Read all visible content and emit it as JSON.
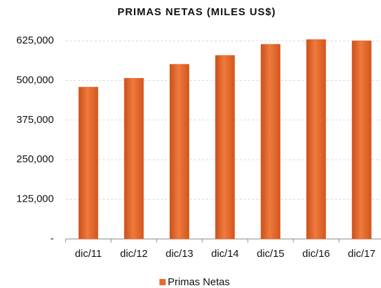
{
  "chart_data": {
    "type": "bar",
    "title": "PRIMAS NETAS (MILES US$)",
    "categories": [
      "dic/11",
      "dic/12",
      "dic/13",
      "dic/14",
      "dic/15",
      "dic/16",
      "dic/17"
    ],
    "series": [
      {
        "name": "Primas Netas",
        "color": "#e8692e",
        "values": [
          479000,
          507000,
          551000,
          579000,
          614000,
          629000,
          625000
        ]
      }
    ],
    "ylim": [
      0,
      625000
    ],
    "yticks": [
      {
        "value": 0,
        "label": "-"
      },
      {
        "value": 125000,
        "label": "125,000"
      },
      {
        "value": 250000,
        "label": "250,000"
      },
      {
        "value": 375000,
        "label": "375,000"
      },
      {
        "value": 500000,
        "label": "500,000"
      },
      {
        "value": 625000,
        "label": "625,000"
      }
    ],
    "grid": true,
    "legend": "bottom"
  }
}
